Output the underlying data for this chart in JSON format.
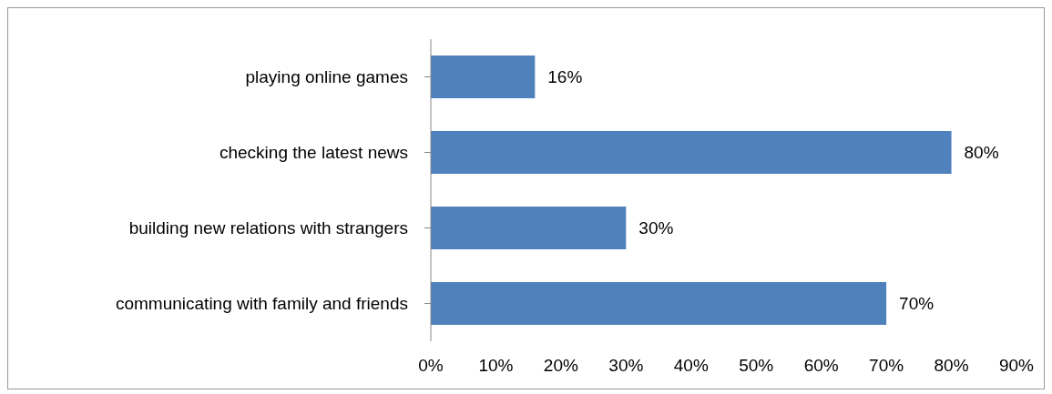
{
  "chart_data": {
    "type": "bar",
    "orientation": "horizontal",
    "categories": [
      "playing online games",
      "checking the latest news",
      "building new relations with strangers",
      "communicating with family and friends"
    ],
    "values": [
      16,
      80,
      30,
      70
    ],
    "value_labels": [
      "16%",
      "80%",
      "30%",
      "70%"
    ],
    "color": "#4f81bd",
    "xlim": [
      0,
      90
    ],
    "xticks": [
      {
        "value": 0,
        "label": "0%"
      },
      {
        "value": 10,
        "label": "10%"
      },
      {
        "value": 20,
        "label": "20%"
      },
      {
        "value": 30,
        "label": "30%"
      },
      {
        "value": 40,
        "label": "40%"
      },
      {
        "value": 50,
        "label": "50%"
      },
      {
        "value": 60,
        "label": "60%"
      },
      {
        "value": 70,
        "label": "70%"
      },
      {
        "value": 80,
        "label": "80%"
      },
      {
        "value": 90,
        "label": "90%"
      }
    ]
  }
}
